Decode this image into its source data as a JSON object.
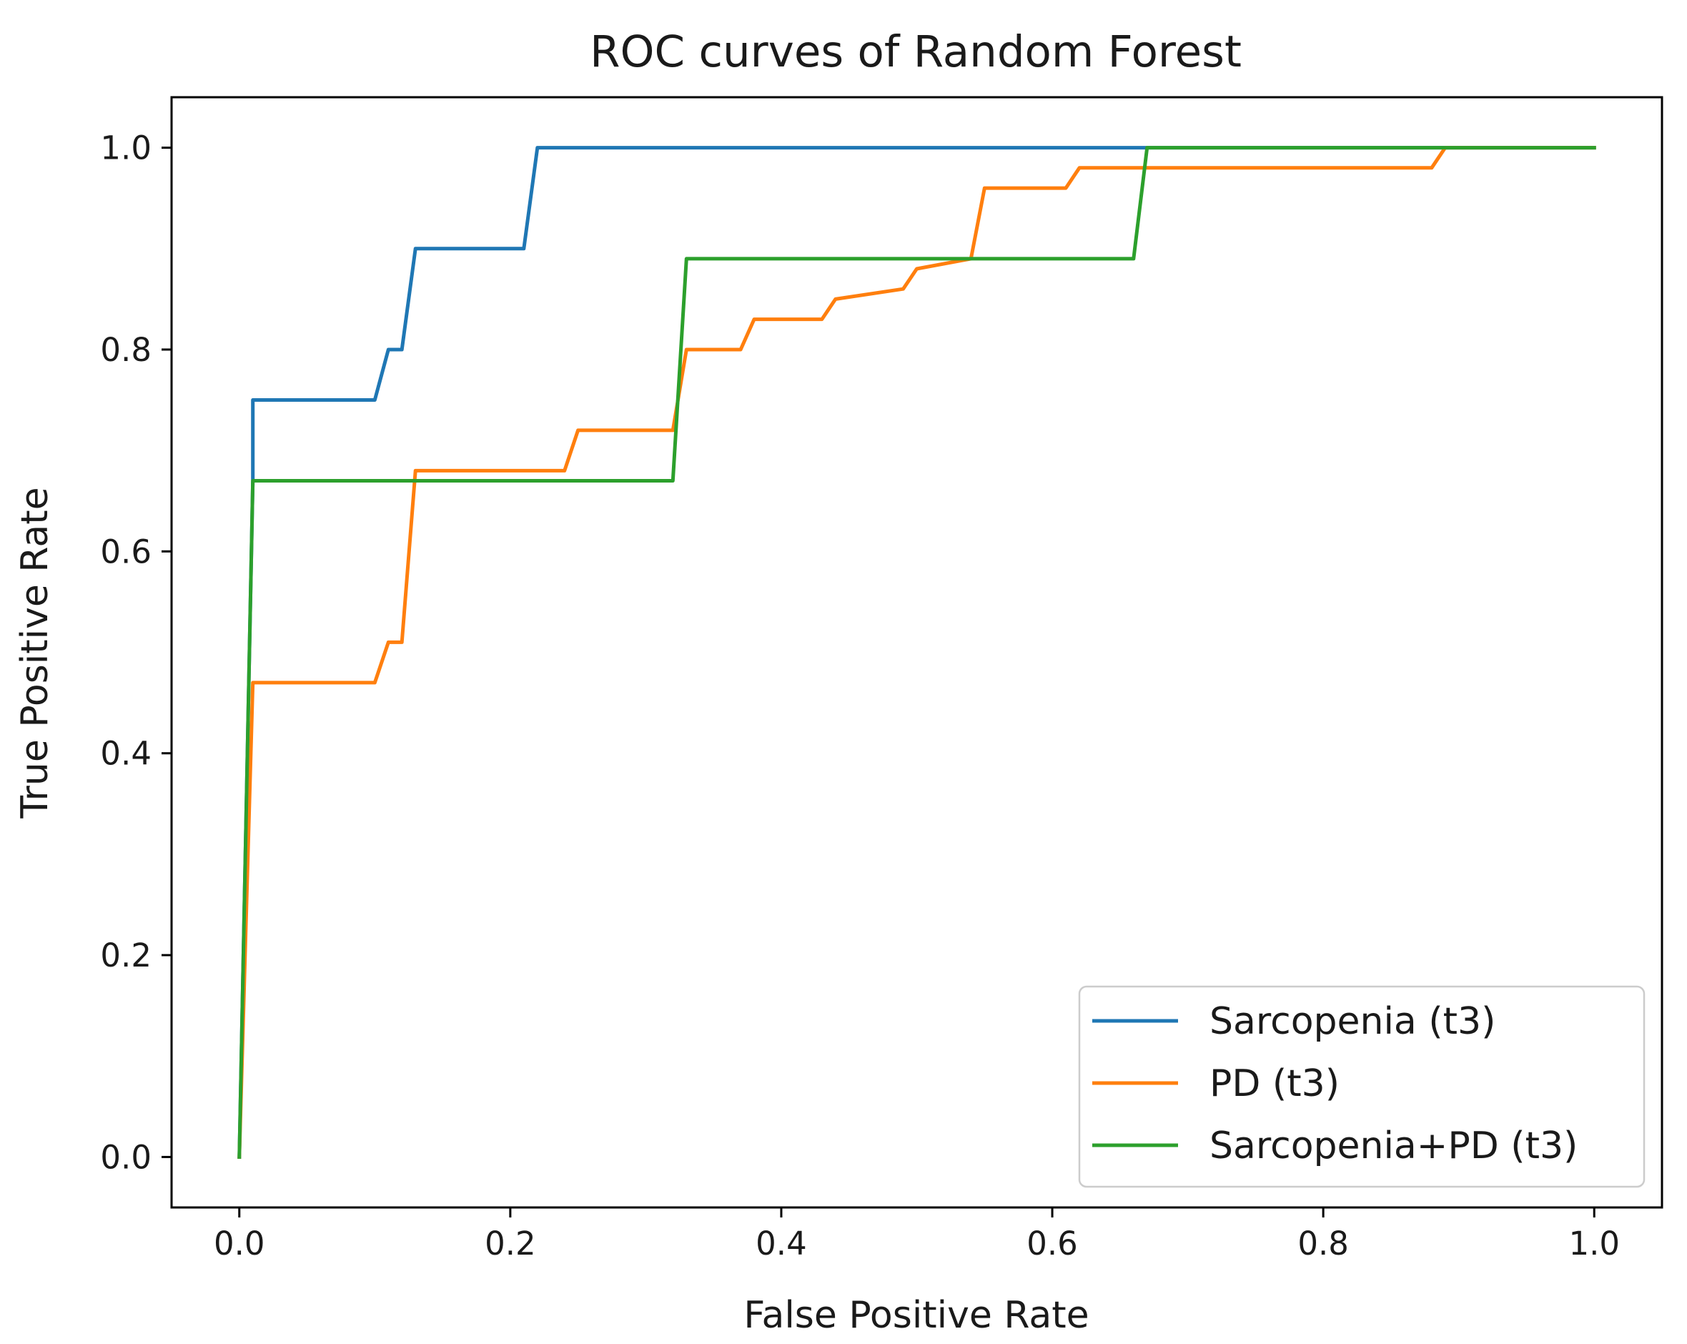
{
  "chart_data": {
    "type": "line",
    "title": "ROC curves of Random Forest",
    "xlabel": "False Positive Rate",
    "ylabel": "True Positive Rate",
    "xlim": [
      -0.05,
      1.05
    ],
    "ylim": [
      -0.05,
      1.05
    ],
    "xticks": [
      0.0,
      0.2,
      0.4,
      0.6,
      0.8,
      1.0
    ],
    "yticks": [
      0.0,
      0.2,
      0.4,
      0.6,
      0.8,
      1.0
    ],
    "xtick_labels": [
      "0.0",
      "0.2",
      "0.4",
      "0.6",
      "0.8",
      "1.0"
    ],
    "ytick_labels": [
      "0.0",
      "0.2",
      "0.4",
      "0.6",
      "0.8",
      "1.0"
    ],
    "grid": false,
    "legend_position": "lower-right",
    "series": [
      {
        "name": "Sarcopenia (t3)",
        "color": "#1f77b4",
        "points": [
          [
            0.0,
            0.0
          ],
          [
            0.01,
            0.67
          ],
          [
            0.01,
            0.75
          ],
          [
            0.1,
            0.75
          ],
          [
            0.11,
            0.8
          ],
          [
            0.12,
            0.8
          ],
          [
            0.13,
            0.9
          ],
          [
            0.21,
            0.9
          ],
          [
            0.22,
            1.0
          ],
          [
            1.0,
            1.0
          ]
        ]
      },
      {
        "name": "PD (t3)",
        "color": "#ff7f0e",
        "points": [
          [
            0.0,
            0.0
          ],
          [
            0.01,
            0.47
          ],
          [
            0.1,
            0.47
          ],
          [
            0.11,
            0.51
          ],
          [
            0.12,
            0.51
          ],
          [
            0.13,
            0.68
          ],
          [
            0.24,
            0.68
          ],
          [
            0.25,
            0.72
          ],
          [
            0.32,
            0.72
          ],
          [
            0.33,
            0.8
          ],
          [
            0.37,
            0.8
          ],
          [
            0.38,
            0.83
          ],
          [
            0.43,
            0.83
          ],
          [
            0.44,
            0.85
          ],
          [
            0.49,
            0.86
          ],
          [
            0.5,
            0.88
          ],
          [
            0.54,
            0.89
          ],
          [
            0.55,
            0.96
          ],
          [
            0.61,
            0.96
          ],
          [
            0.62,
            0.98
          ],
          [
            0.88,
            0.98
          ],
          [
            0.89,
            1.0
          ],
          [
            1.0,
            1.0
          ]
        ]
      },
      {
        "name": "Sarcopenia+PD (t3)",
        "color": "#2ca02c",
        "points": [
          [
            0.0,
            0.0
          ],
          [
            0.01,
            0.67
          ],
          [
            0.32,
            0.67
          ],
          [
            0.33,
            0.89
          ],
          [
            0.66,
            0.89
          ],
          [
            0.67,
            1.0
          ],
          [
            1.0,
            1.0
          ]
        ]
      }
    ]
  }
}
